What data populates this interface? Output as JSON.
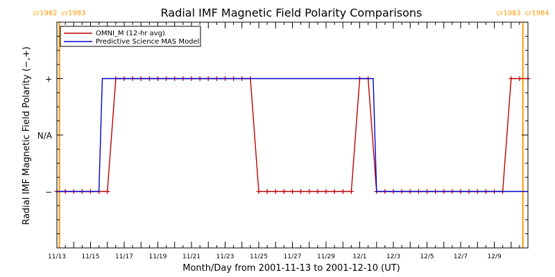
{
  "chart_data": {
    "type": "line",
    "title": "Radial IMF Magnetic Field Polarity Comparisons",
    "xlabel": "Month/Day from 2001-11-13 to 2001-12-10 (UT)",
    "ylabel": "Radial IMF Magnetic Field Polarity (−,+)",
    "xlim": [
      0,
      28
    ],
    "ylim": [
      -2,
      2
    ],
    "x_tick_labels": [
      {
        "x": 0,
        "label": "11/13"
      },
      {
        "x": 2,
        "label": "11/15"
      },
      {
        "x": 4,
        "label": "11/17"
      },
      {
        "x": 6,
        "label": "11/19"
      },
      {
        "x": 8,
        "label": "11/21"
      },
      {
        "x": 10,
        "label": "11/23"
      },
      {
        "x": 12,
        "label": "11/25"
      },
      {
        "x": 14,
        "label": "11/27"
      },
      {
        "x": 16,
        "label": "11/29"
      },
      {
        "x": 18,
        "label": "12/1"
      },
      {
        "x": 20,
        "label": "12/3"
      },
      {
        "x": 22,
        "label": "12/5"
      },
      {
        "x": 24,
        "label": "12/7"
      },
      {
        "x": 26,
        "label": "12/9"
      }
    ],
    "y_tick_labels": [
      {
        "y": 1,
        "label": "+"
      },
      {
        "y": 0,
        "label": "N/A"
      },
      {
        "y": -1,
        "label": "−"
      }
    ],
    "carrington_rotations": [
      {
        "x": 0.15,
        "left": "cr1982",
        "right": "cr1983",
        "color": "#ff9900"
      },
      {
        "x": 27.7,
        "left": "cr1983",
        "right": "cr1984",
        "color": "#ff9900"
      }
    ],
    "legend_position": "top-left",
    "series": [
      {
        "name": "OMNI_M (12-hr avg)",
        "color": "#bb0000",
        "marker": "+",
        "x": [
          0,
          0.5,
          1,
          1.5,
          2,
          2.5,
          3,
          3.5,
          4,
          4.5,
          5,
          5.5,
          6,
          6.5,
          7,
          7.5,
          8,
          8.5,
          9,
          9.5,
          10,
          10.5,
          11,
          11.5,
          12,
          12.5,
          13,
          13.5,
          14,
          14.5,
          15,
          15.5,
          16,
          16.5,
          17,
          17.5,
          18,
          18.5,
          19,
          19.5,
          20,
          20.5,
          21,
          21.5,
          22,
          22.5,
          23,
          23.5,
          24,
          24.5,
          25,
          25.5,
          26,
          26.5,
          27,
          27.5,
          28
        ],
        "y": [
          -1,
          -1,
          -1,
          -1,
          -1,
          -1,
          -1,
          1,
          1,
          1,
          1,
          1,
          1,
          1,
          1,
          1,
          1,
          1,
          1,
          1,
          1,
          1,
          1,
          1,
          -1,
          -1,
          -1,
          -1,
          -1,
          -1,
          -1,
          -1,
          -1,
          -1,
          -1,
          -1,
          1,
          1,
          -1,
          -1,
          -1,
          -1,
          -1,
          -1,
          -1,
          -1,
          -1,
          -1,
          -1,
          -1,
          -1,
          -1,
          -1,
          -1,
          1,
          1,
          1
        ]
      },
      {
        "name": "Predictive Science MAS Model",
        "color": "#0000cc",
        "marker": "",
        "x": [
          0,
          2.5,
          2.7,
          18.8,
          19,
          28
        ],
        "y": [
          -1,
          -1,
          1,
          1,
          -1,
          -1
        ]
      }
    ]
  }
}
